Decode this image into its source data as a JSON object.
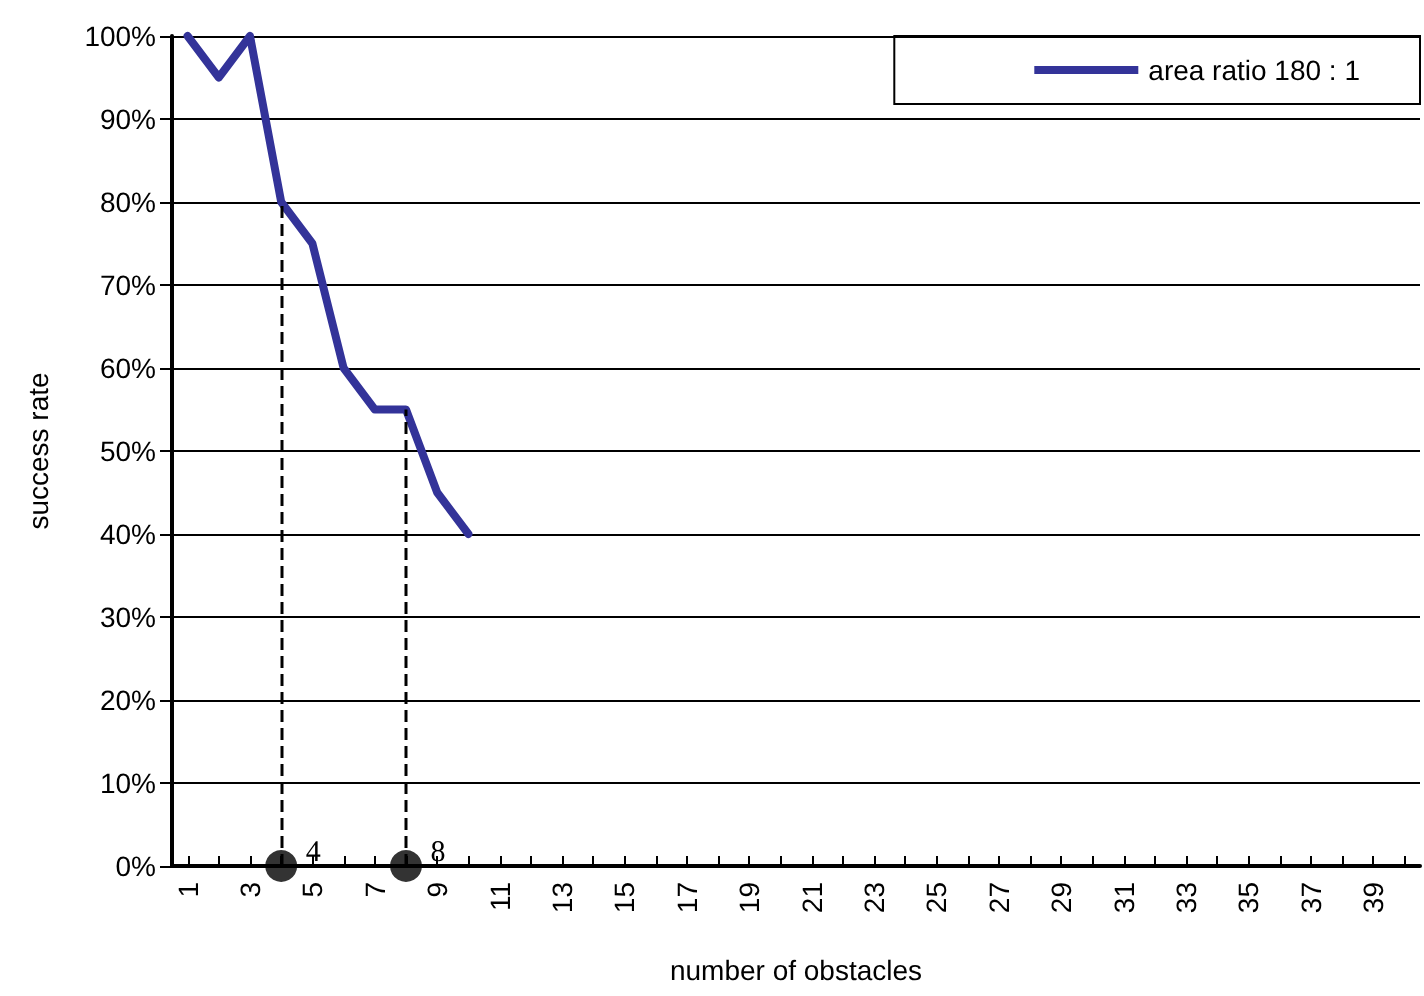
{
  "chart_data": {
    "type": "line",
    "xlabel": "number of obstacles",
    "ylabel": "success rate",
    "x": [
      1,
      2,
      3,
      4,
      5,
      6,
      7,
      8,
      9,
      10
    ],
    "series": [
      {
        "name": "area ratio 180 : 1",
        "color": "#333399",
        "values": [
          100,
          95,
          100,
          80,
          75,
          60,
          55,
          55,
          45,
          40
        ]
      },
      {
        "type": "scatter",
        "color": "#000000",
        "marker": "circle",
        "x": [
          4,
          8
        ],
        "values": [
          0,
          0
        ]
      }
    ],
    "xlim": [
      0.5,
      40.5
    ],
    "xticks": [
      1,
      {
        "value": 2,
        "label": null
      },
      3,
      {
        "value": 4,
        "label": null
      },
      5,
      {
        "value": 6,
        "label": null
      },
      7,
      {
        "value": 8,
        "label": null
      },
      9,
      {
        "value": 10,
        "label": null
      },
      11,
      {
        "value": 12,
        "label": null
      },
      13,
      {
        "value": 14,
        "label": null
      },
      15,
      {
        "value": 16,
        "label": null
      },
      17,
      {
        "value": 18,
        "label": null
      },
      19,
      {
        "value": 20,
        "label": null
      },
      21,
      {
        "value": 22,
        "label": null
      },
      23,
      {
        "value": 24,
        "label": null
      },
      25,
      {
        "value": 26,
        "label": null
      },
      27,
      {
        "value": 28,
        "label": null
      },
      29,
      {
        "value": 30,
        "label": null
      },
      31,
      {
        "value": 32,
        "label": null
      },
      33,
      {
        "value": 34,
        "label": null
      },
      35,
      {
        "value": 36,
        "label": null
      },
      37,
      {
        "value": 38,
        "label": null
      },
      39,
      {
        "value": 40,
        "label": null
      }
    ],
    "ylim": [
      0,
      100
    ],
    "yticks": [
      {
        "value": 0,
        "label": "0%"
      },
      {
        "value": 10,
        "label": "10%"
      },
      {
        "value": 20,
        "label": "20%"
      },
      {
        "value": 30,
        "label": "30%"
      },
      {
        "value": 40,
        "label": "40%"
      },
      {
        "value": 50,
        "label": "50%"
      },
      {
        "value": 60,
        "label": "60%"
      },
      {
        "value": 70,
        "label": "70%"
      },
      {
        "value": 80,
        "label": "80%"
      },
      {
        "value": 90,
        "label": "90%"
      },
      {
        "value": 100,
        "label": "100%"
      }
    ],
    "ref_lines": [
      {
        "axis": "x",
        "value": 4,
        "label": "4",
        "line_style": "dashed",
        "color": "#000000"
      },
      {
        "axis": "x",
        "value": 8,
        "label": "8",
        "line_style": "dashed",
        "color": "#000000"
      }
    ],
    "grid": "y",
    "legend": "top right",
    "marker": "none",
    "line_style": "solid"
  }
}
